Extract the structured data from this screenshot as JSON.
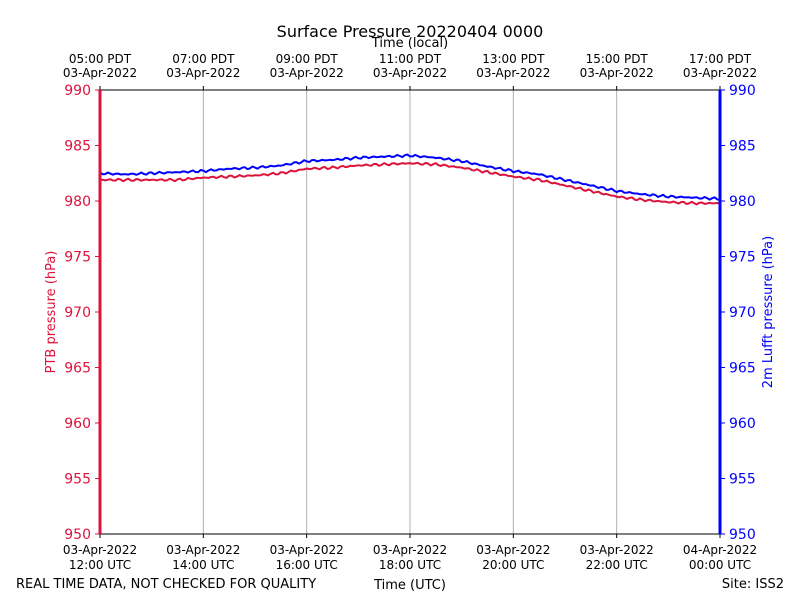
{
  "chart_data": {
    "type": "line",
    "title": "Surface Pressure 20220404 0000",
    "top_xlabel": "Time (local)",
    "xlabel": "Time (UTC)",
    "ylabel_left": "PTB pressure (hPa)",
    "ylabel_right": "2m Lufft pressure (hPa)",
    "ylim": [
      950,
      990
    ],
    "yticks": [
      950,
      955,
      960,
      965,
      970,
      975,
      980,
      985,
      990
    ],
    "xlim_hours_utc": [
      12,
      24
    ],
    "grid": "vertical",
    "x_ticks_utc": [
      {
        "date": "03-Apr-2022",
        "time": "12:00 UTC"
      },
      {
        "date": "03-Apr-2022",
        "time": "14:00 UTC"
      },
      {
        "date": "03-Apr-2022",
        "time": "16:00 UTC"
      },
      {
        "date": "03-Apr-2022",
        "time": "18:00 UTC"
      },
      {
        "date": "03-Apr-2022",
        "time": "20:00 UTC"
      },
      {
        "date": "03-Apr-2022",
        "time": "22:00 UTC"
      },
      {
        "date": "04-Apr-2022",
        "time": "00:00 UTC"
      }
    ],
    "x_ticks_local": [
      {
        "time": "05:00 PDT",
        "date": "03-Apr-2022"
      },
      {
        "time": "07:00 PDT",
        "date": "03-Apr-2022"
      },
      {
        "time": "09:00 PDT",
        "date": "03-Apr-2022"
      },
      {
        "time": "11:00 PDT",
        "date": "03-Apr-2022"
      },
      {
        "time": "13:00 PDT",
        "date": "03-Apr-2022"
      },
      {
        "time": "15:00 PDT",
        "date": "03-Apr-2022"
      },
      {
        "time": "17:00 PDT",
        "date": "03-Apr-2022"
      }
    ],
    "series": [
      {
        "color": "#dc143c",
        "axis": "left",
        "x": [
          12.0,
          12.5,
          13.0,
          13.5,
          14.0,
          14.5,
          15.0,
          15.5,
          16.0,
          16.5,
          17.0,
          17.5,
          18.0,
          18.5,
          19.0,
          19.5,
          20.0,
          20.5,
          21.0,
          21.5,
          22.0,
          22.5,
          23.0,
          23.5,
          24.0
        ],
        "y": [
          981.9,
          981.9,
          981.9,
          981.9,
          982.1,
          982.2,
          982.3,
          982.5,
          982.9,
          983.0,
          983.2,
          983.3,
          983.4,
          983.3,
          983.0,
          982.6,
          982.2,
          981.9,
          981.4,
          980.9,
          980.4,
          980.1,
          979.9,
          979.8,
          979.8
        ]
      },
      {
        "color": "#0000ff",
        "axis": "right",
        "x": [
          12.0,
          12.5,
          13.0,
          13.5,
          14.0,
          14.5,
          15.0,
          15.5,
          16.0,
          16.5,
          17.0,
          17.5,
          18.0,
          18.5,
          19.0,
          19.5,
          20.0,
          20.5,
          21.0,
          21.5,
          22.0,
          22.5,
          23.0,
          23.5,
          24.0
        ],
        "y": [
          982.5,
          982.4,
          982.5,
          982.6,
          982.7,
          982.9,
          983.0,
          983.2,
          983.6,
          983.7,
          983.9,
          984.0,
          984.1,
          983.9,
          983.6,
          983.1,
          982.7,
          982.4,
          981.9,
          981.4,
          980.9,
          980.6,
          980.4,
          980.3,
          980.2
        ]
      }
    ]
  },
  "footer": {
    "left_note": "REAL TIME DATA, NOT CHECKED FOR QUALITY",
    "site": "Site: ISS2"
  }
}
